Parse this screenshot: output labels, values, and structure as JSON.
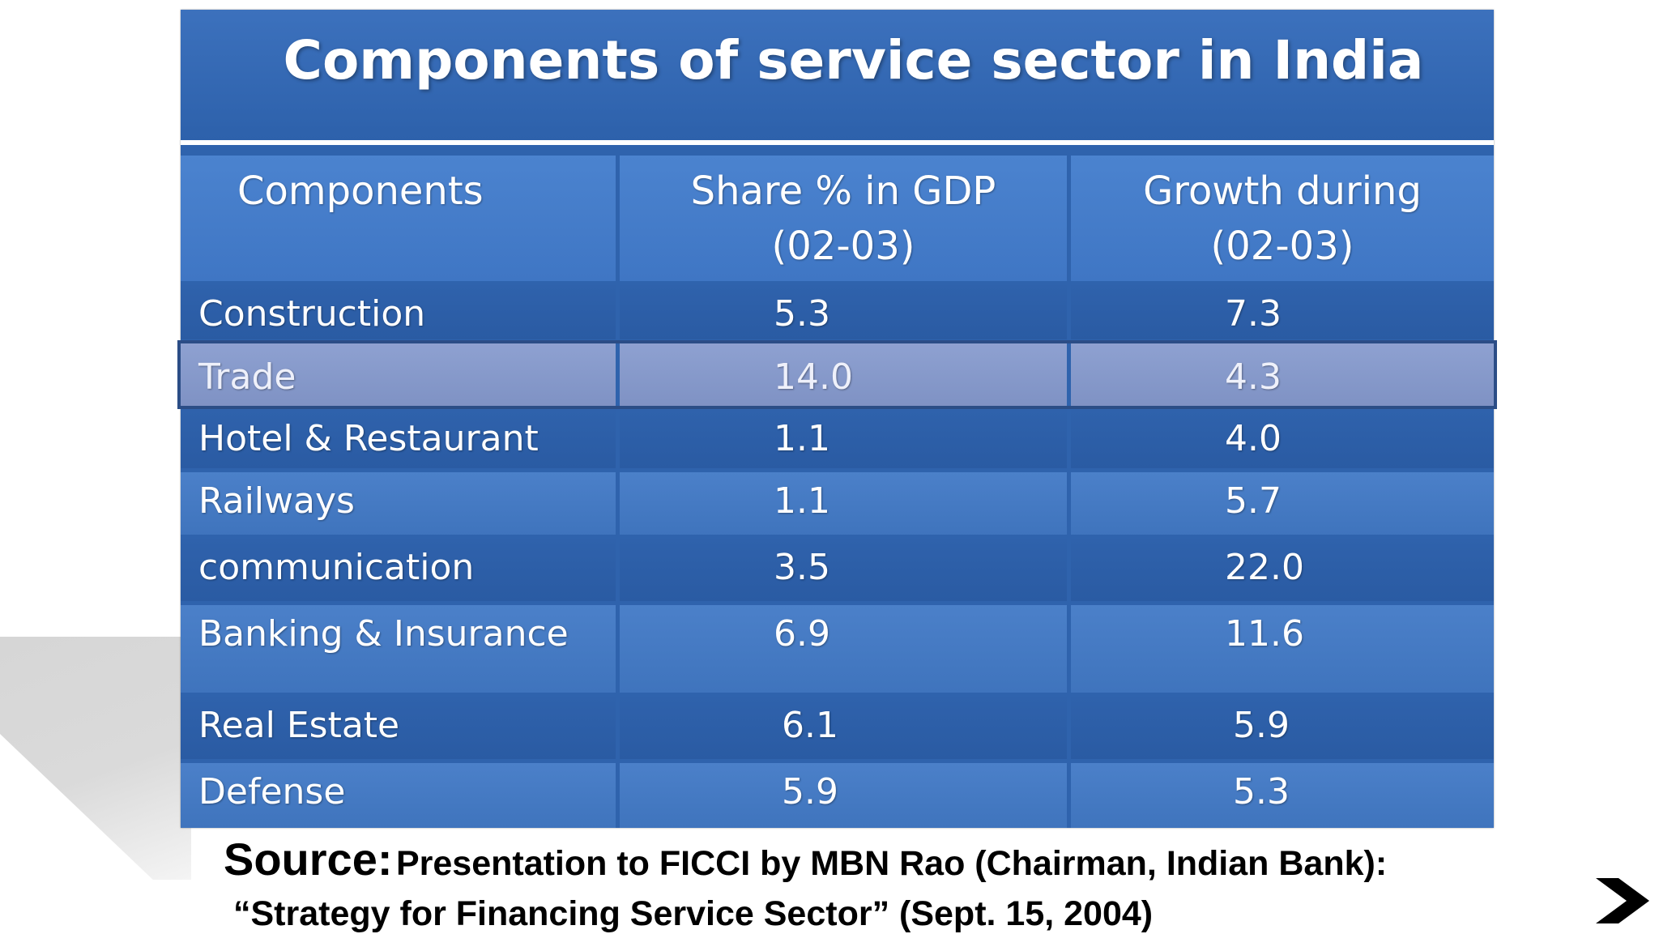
{
  "title": "Components of service sector in India",
  "table": {
    "headers": [
      "Components",
      "Share % in GDP (02-03)",
      "Growth during (02-03)"
    ],
    "header_lines": [
      [
        "Components"
      ],
      [
        "Share % in GDP",
        "(02-03)"
      ],
      [
        "Growth during",
        "(02-03)"
      ]
    ],
    "rows": [
      {
        "component": "Construction",
        "share": "5.3",
        "growth": "7.3"
      },
      {
        "component": "Trade",
        "share": "14.0",
        "growth": "4.3"
      },
      {
        "component": "Hotel & Restaurant",
        "share": "1.1",
        "growth": "4.0"
      },
      {
        "component": "Railways",
        "share": "1.1",
        "growth": "5.7"
      },
      {
        "component": "communication",
        "share": "3.5",
        "growth": "22.0"
      },
      {
        "component": "Banking & Insurance",
        "share": "6.9",
        "growth": "11.6"
      },
      {
        "component": "Real Estate",
        "share": "6.1",
        "growth": "5.9"
      },
      {
        "component": "Defense",
        "share": "5.9",
        "growth": "5.3"
      }
    ],
    "highlighted_row": "Trade"
  },
  "source": {
    "label": "Source:",
    "line1": "Presentation to FICCI by MBN Rao (Chairman, Indian Bank):",
    "line2": "“Strategy for Financing Service Sector” (Sept. 15, 2004)"
  },
  "navigation": {
    "next_icon": "chevron-right-icon"
  },
  "colors": {
    "table_blue": "#2f63ad",
    "header_blue": "#4b83cf",
    "highlight": "#8ea1d1"
  }
}
